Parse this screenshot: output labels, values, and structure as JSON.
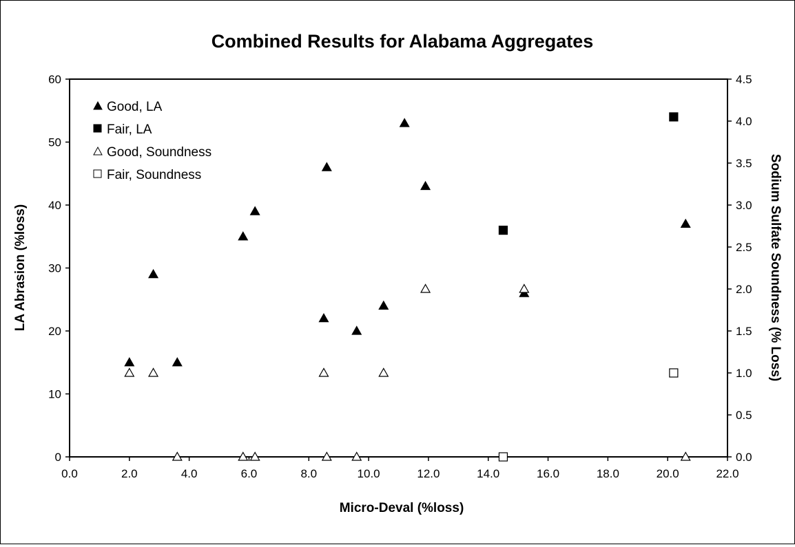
{
  "chart_data": {
    "type": "scatter",
    "title": "Combined Results for Alabama Aggregates",
    "xlabel": "Micro-Deval (%loss)",
    "ylabel": "LA Abrasion (%loss)",
    "y2label": "Sodium Sulfate Soundness (% Loss)",
    "xlim": [
      0,
      22
    ],
    "ylim": [
      0,
      60
    ],
    "y2lim": [
      0,
      4.5
    ],
    "x_ticks": [
      "0.0",
      "2.0",
      "4.0",
      "6.0",
      "8.0",
      "10.0",
      "12.0",
      "14.0",
      "16.0",
      "18.0",
      "20.0",
      "22.0"
    ],
    "y_ticks": [
      "0",
      "10",
      "20",
      "30",
      "40",
      "50",
      "60"
    ],
    "y2_ticks": [
      "0.0",
      "0.5",
      "1.0",
      "1.5",
      "2.0",
      "2.5",
      "3.0",
      "3.5",
      "4.0",
      "4.5"
    ],
    "grid": false,
    "legend_position": "top-left",
    "series": [
      {
        "name": "Good, LA",
        "axis": "left",
        "marker": "triangle-filled",
        "points": [
          [
            2.0,
            15
          ],
          [
            2.8,
            29
          ],
          [
            3.6,
            15
          ],
          [
            5.8,
            35
          ],
          [
            6.2,
            39
          ],
          [
            8.5,
            22
          ],
          [
            8.6,
            46
          ],
          [
            9.6,
            20
          ],
          [
            10.5,
            24
          ],
          [
            11.2,
            53
          ],
          [
            11.9,
            43
          ],
          [
            15.2,
            26
          ],
          [
            20.6,
            37
          ]
        ]
      },
      {
        "name": "Fair, LA",
        "axis": "left",
        "marker": "square-filled",
        "points": [
          [
            14.5,
            36
          ],
          [
            20.2,
            54
          ]
        ]
      },
      {
        "name": "Good, Soundness",
        "axis": "right",
        "marker": "triangle-open",
        "points": [
          [
            2.0,
            1.0
          ],
          [
            2.8,
            1.0
          ],
          [
            3.6,
            0.0
          ],
          [
            5.8,
            0.0
          ],
          [
            6.2,
            0.0
          ],
          [
            8.5,
            1.0
          ],
          [
            8.6,
            0.0
          ],
          [
            9.6,
            0.0
          ],
          [
            10.5,
            1.0
          ],
          [
            11.9,
            2.0
          ],
          [
            15.2,
            2.0
          ],
          [
            20.6,
            0.0
          ]
        ]
      },
      {
        "name": "Fair, Soundness",
        "axis": "right",
        "marker": "square-open",
        "points": [
          [
            14.5,
            0.0
          ],
          [
            20.2,
            1.0
          ]
        ]
      }
    ]
  }
}
